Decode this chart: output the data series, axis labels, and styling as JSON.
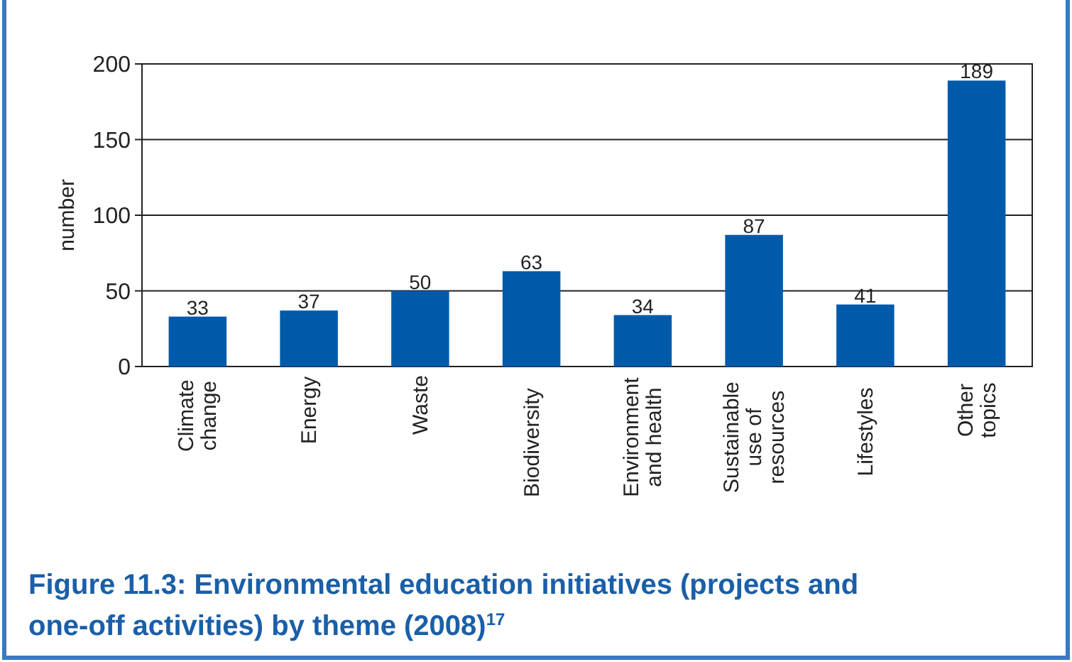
{
  "chart_data": {
    "type": "bar",
    "title": "Figure 11.3: Environmental education initiatives (projects and one-off activities) by theme (2008)$^{17}$",
    "ylabel": "number",
    "categories": [
      "Climate\nchange",
      "Energy",
      "Waste",
      "Biodiversity",
      "Environment\nand health",
      "Sustainable\nuse of\nresources",
      "Lifestyles",
      "Other\ntopics"
    ],
    "values": [
      33,
      37,
      50,
      63,
      34,
      87,
      41,
      189
    ],
    "color": "#005aaa",
    "ylim": [
      0,
      200
    ],
    "yticks": [
      0,
      50,
      100,
      150,
      200
    ],
    "grid": "y",
    "data_labels": true
  }
}
